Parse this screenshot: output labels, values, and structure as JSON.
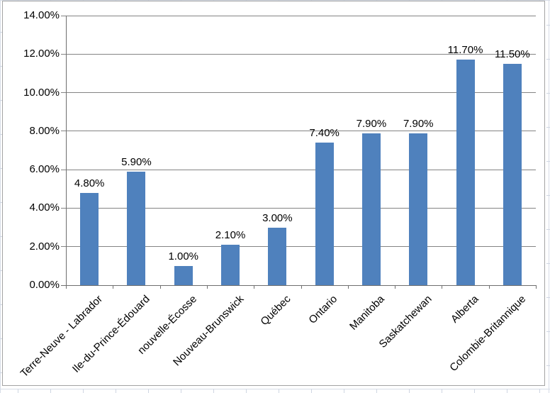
{
  "chart_data": {
    "type": "bar",
    "categories": [
      "Terre-Neuve - Labrador",
      "Ile-du-Prince-Édouard",
      "nouvelle-Écosse",
      "Nouveau-Brunswick",
      "Québec",
      "Ontario",
      "Manitoba",
      "Saskatchewan",
      "Alberta",
      "Colombie-Britannique"
    ],
    "values": [
      4.8,
      5.9,
      1.0,
      2.1,
      3.0,
      7.4,
      7.9,
      7.9,
      11.7,
      11.5
    ],
    "data_labels": [
      "4.80%",
      "5.90%",
      "1.00%",
      "2.10%",
      "3.00%",
      "7.40%",
      "7.90%",
      "7.90%",
      "11.70%",
      "11.50%"
    ],
    "ytick_labels": [
      "0.00%",
      "2.00%",
      "4.00%",
      "6.00%",
      "8.00%",
      "10.00%",
      "12.00%",
      "14.00%"
    ],
    "ytick_step": 2,
    "ylim": [
      0,
      14
    ],
    "xlabel": "",
    "ylabel": "",
    "grid": true,
    "legend": "none",
    "colors": {
      "bar_fill": "#4F81BD",
      "gridline": "#848484",
      "axis": "#6F6F6F",
      "text": "#000000",
      "chart_border": "#A3A3A3",
      "sheet_gridline": "#D7DDE7"
    }
  }
}
